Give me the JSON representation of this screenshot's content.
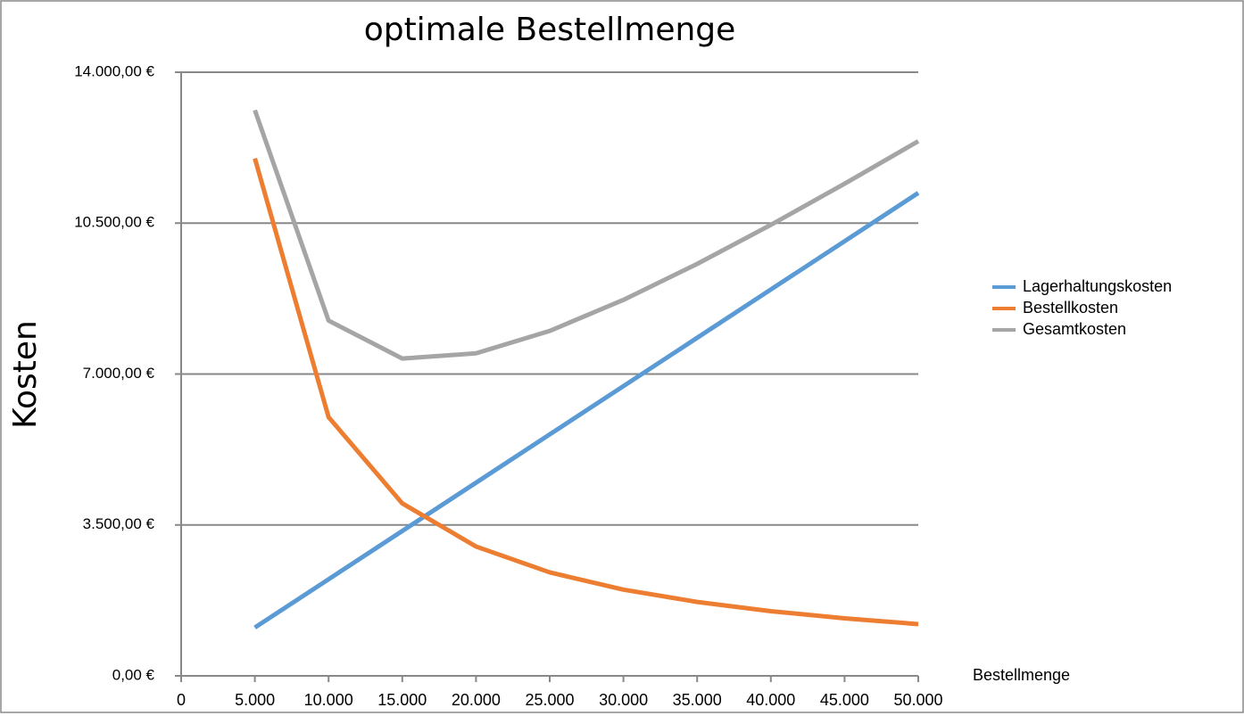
{
  "chart_data": {
    "type": "line",
    "title": "optimale Bestellmenge",
    "y_label": "Kosten",
    "x_label": "Bestellmenge",
    "x": [
      5000,
      10000,
      15000,
      20000,
      25000,
      30000,
      35000,
      40000,
      45000,
      50000
    ],
    "series": [
      {
        "name": "Lagerhaltungskosten",
        "color": "#5b9bd5",
        "values": [
          1120,
          2240,
          3360,
          4480,
          5600,
          6720,
          7840,
          8960,
          10080,
          11200
        ]
      },
      {
        "name": "Bestellkosten",
        "color": "#ed7d31",
        "values": [
          12000,
          6000,
          4000,
          3000,
          2400,
          2000,
          1714.29,
          1500,
          1333.33,
          1200
        ]
      },
      {
        "name": "Gesamtkosten",
        "color": "#a5a5a5",
        "values": [
          13120,
          8240,
          7360,
          7480,
          8000,
          8720,
          9554.29,
          10460,
          11413.33,
          12400
        ]
      }
    ],
    "xlim": [
      0,
      50000
    ],
    "xticks": [
      0,
      {
        "value": 5000,
        "label": "5.000"
      },
      {
        "value": 10000,
        "label": "10.000"
      },
      {
        "value": 15000,
        "label": "15.000"
      },
      {
        "value": 20000,
        "label": "20.000"
      },
      {
        "value": 25000,
        "label": "25.000"
      },
      {
        "value": 30000,
        "label": "30.000"
      },
      {
        "value": 35000,
        "label": "35.000"
      },
      {
        "value": 40000,
        "label": "40.000"
      },
      {
        "value": 45000,
        "label": "45.000"
      },
      {
        "value": 50000,
        "label": "50.000"
      }
    ],
    "ylim": [
      0,
      14000
    ],
    "yticks": [
      {
        "value": 0,
        "label": "0,00 €"
      },
      {
        "value": 3500,
        "label": "3.500,00 €"
      },
      {
        "value": 7000,
        "label": "7.000,00 €"
      },
      {
        "value": 10500,
        "label": "10.500,00 €"
      },
      {
        "value": 14000,
        "label": "14.000,00 €"
      }
    ],
    "grid": true,
    "legend": "right"
  }
}
